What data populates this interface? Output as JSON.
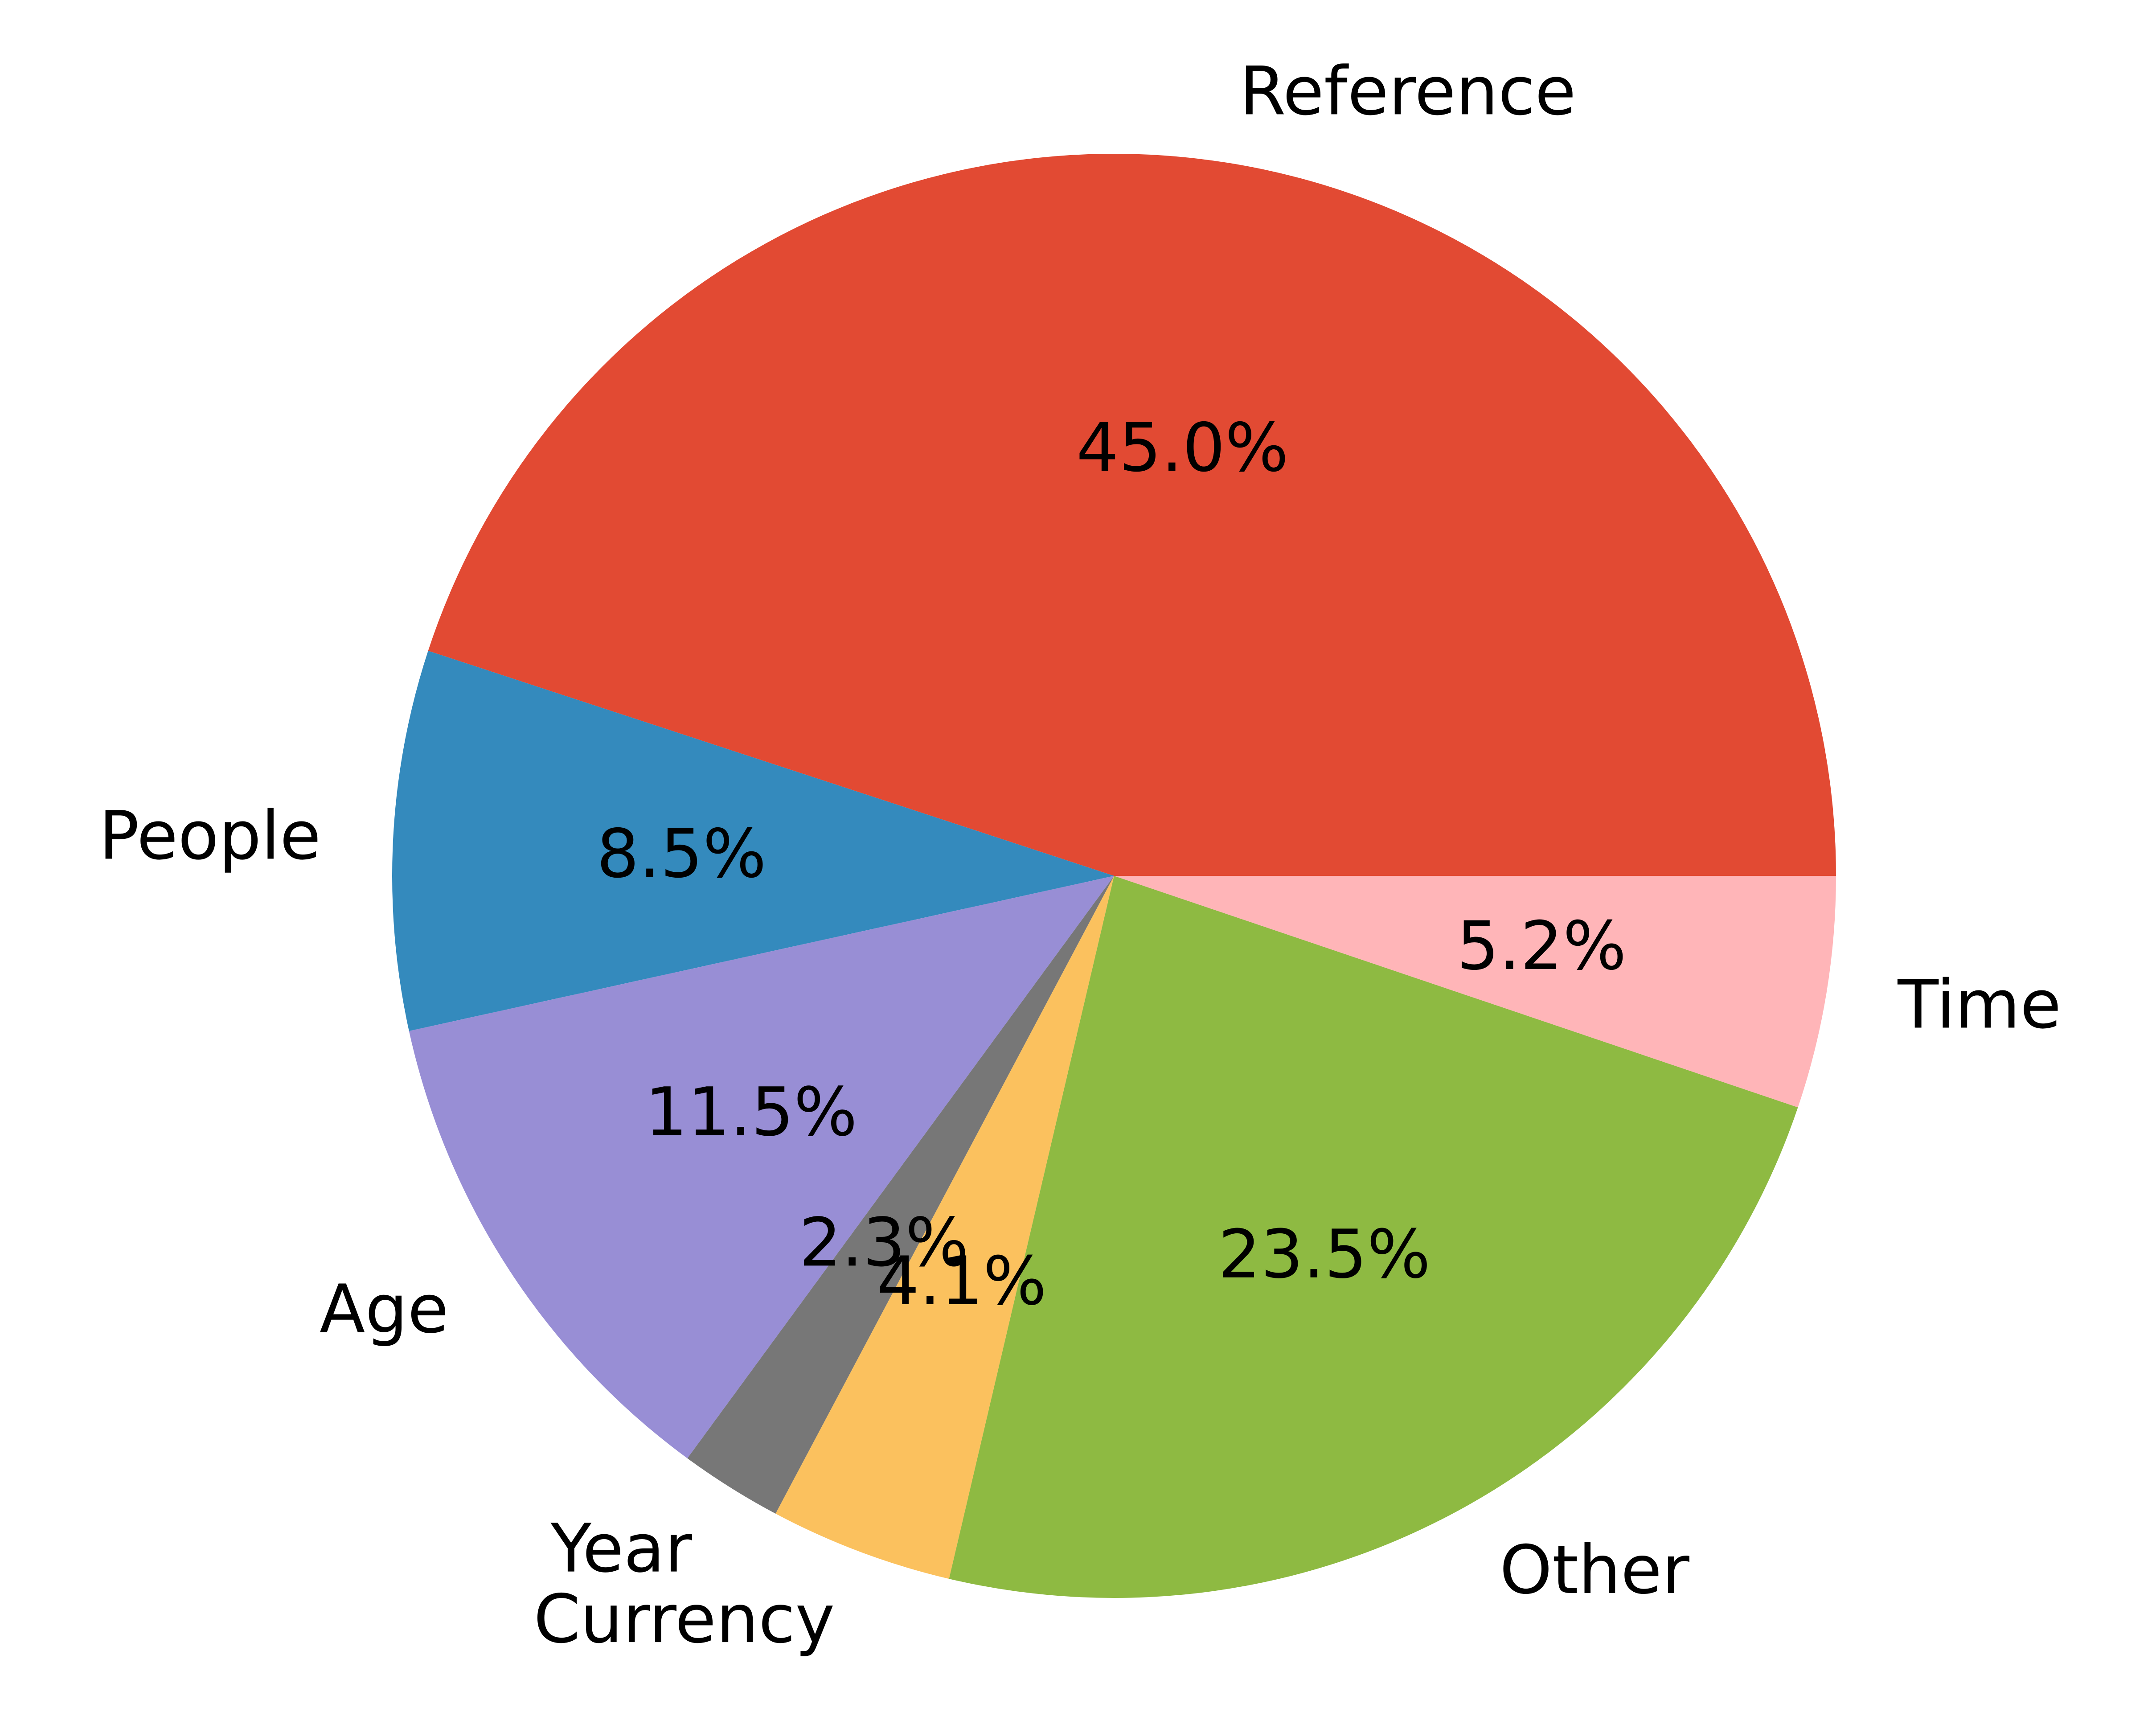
{
  "chart_data": {
    "type": "pie",
    "start_angle": 0,
    "direction": "counterclockwise",
    "legend": "none",
    "title": "",
    "slices": [
      {
        "label": "Reference",
        "value": 45.0,
        "pct_label": "45.0%",
        "color": "#E24A33"
      },
      {
        "label": "People",
        "value": 8.5,
        "pct_label": "8.5%",
        "color": "#348ABD"
      },
      {
        "label": "Age",
        "value": 11.5,
        "pct_label": "11.5%",
        "color": "#988ED5"
      },
      {
        "label": "Year",
        "value": 2.3,
        "pct_label": "2.3%",
        "color": "#777777"
      },
      {
        "label": "Currency",
        "value": 4.1,
        "pct_label": "4.1%",
        "color": "#FBC15E"
      },
      {
        "label": "Other",
        "value": 23.5,
        "pct_label": "23.5%",
        "color": "#8EBA42"
      },
      {
        "label": "Time",
        "value": 5.2,
        "pct_label": "5.2%",
        "color": "#FFB5B8"
      }
    ]
  }
}
